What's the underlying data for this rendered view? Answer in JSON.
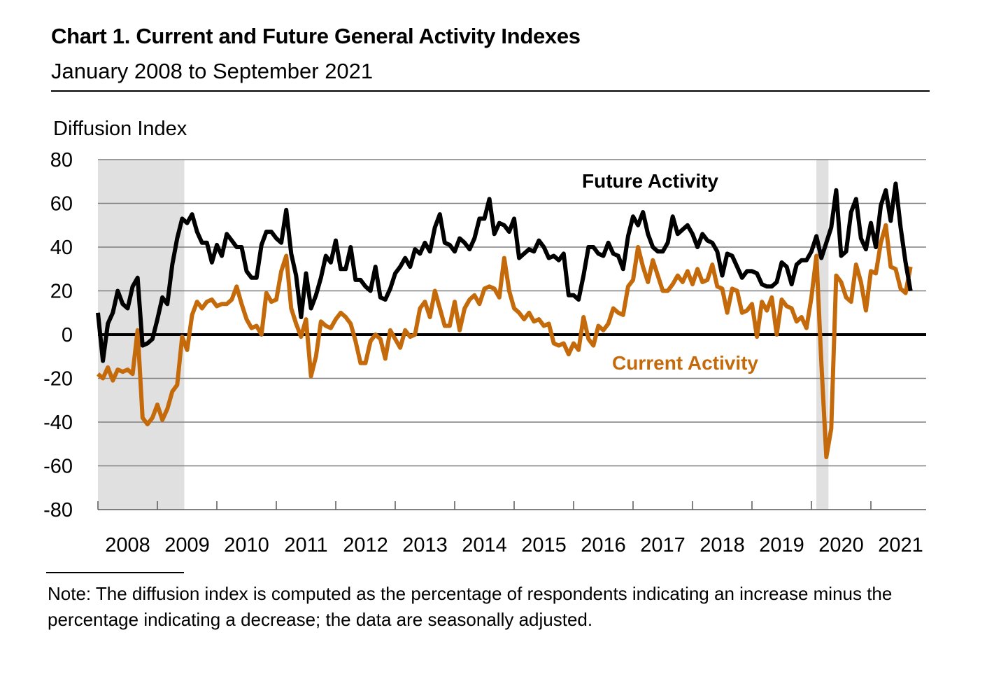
{
  "header": {
    "title": "Chart 1. Current and Future General Activity Indexes",
    "subtitle": "January 2008 to September 2021",
    "y_axis_title": "Diffusion Index"
  },
  "note": "Note: The diffusion index is computed as the percentage of respondents indicating an increase minus the percentage indicating a decrease; the data are seasonally adjusted.",
  "chart_data": {
    "type": "line",
    "title": "Chart 1. Current and Future General Activity Indexes",
    "subtitle": "January 2008 to September 2021",
    "xlabel": "",
    "ylabel": "Diffusion Index",
    "ylim": [
      -80,
      80
    ],
    "yticks": [
      80,
      60,
      40,
      20,
      0,
      -20,
      -40,
      -60,
      -80
    ],
    "ytick_labels": [
      "80",
      "60",
      "40",
      "20",
      "0",
      "-20",
      "-40",
      "-60",
      "-80"
    ],
    "x_start": "2008-01",
    "x_end": "2021-09",
    "frequency": "monthly",
    "xtick_labels": [
      "2008",
      "2009",
      "2010",
      "2011",
      "2012",
      "2013",
      "2014",
      "2015",
      "2016",
      "2017",
      "2018",
      "2019",
      "2020",
      "2021"
    ],
    "grid": "horizontal",
    "recession_shading": [
      {
        "start": "2008-01",
        "end": "2009-06"
      },
      {
        "start": "2020-02",
        "end": "2020-04"
      }
    ],
    "series": [
      {
        "name": "Future Activity",
        "color": "#000000",
        "label_position": "top-center",
        "values": [
          10,
          -12,
          5,
          10,
          20,
          14,
          12,
          22,
          26,
          -5,
          -4,
          -2,
          7,
          17,
          14,
          32,
          44,
          53,
          51,
          55,
          47,
          42,
          42,
          33,
          41,
          36,
          46,
          43,
          40,
          40,
          29,
          26,
          26,
          41,
          47,
          47,
          44,
          42,
          57,
          37,
          27,
          8,
          28,
          12,
          18,
          26,
          36,
          33,
          43,
          30,
          30,
          40,
          25,
          25,
          22,
          20,
          31,
          17,
          16,
          21,
          28,
          31,
          35,
          31,
          39,
          37,
          42,
          38,
          49,
          55,
          42,
          41,
          38,
          44,
          42,
          39,
          44,
          53,
          53,
          62,
          46,
          51,
          50,
          47,
          53,
          35,
          37,
          39,
          38,
          43,
          40,
          35,
          36,
          34,
          37,
          18,
          18,
          16,
          27,
          40,
          40,
          37,
          36,
          42,
          37,
          36,
          30,
          45,
          54,
          50,
          56,
          46,
          40,
          38,
          38,
          42,
          54,
          46,
          48,
          50,
          46,
          40,
          46,
          43,
          42,
          38,
          27,
          37,
          36,
          31,
          26,
          29,
          29,
          28,
          23,
          22,
          22,
          24,
          33,
          31,
          23,
          32,
          34,
          34,
          38,
          45,
          35,
          42,
          49,
          66,
          36,
          38,
          56,
          62,
          44,
          39,
          51,
          40,
          59,
          66,
          52,
          69,
          49,
          33,
          20
        ]
      },
      {
        "name": "Current Activity",
        "color": "#C46A0A",
        "label_position": "center-below-zero",
        "values": [
          -18,
          -20,
          -15,
          -21,
          -16,
          -17,
          -16,
          -18,
          2,
          -38,
          -41,
          -38,
          -32,
          -39,
          -34,
          -26,
          -23,
          -1,
          -7,
          9,
          15,
          12,
          15,
          16,
          13,
          14,
          14,
          16,
          22,
          14,
          7,
          3,
          4,
          0,
          19,
          15,
          16,
          29,
          36,
          12,
          5,
          -1,
          7,
          -19,
          -10,
          6,
          4,
          3,
          7,
          10,
          8,
          5,
          -3,
          -13,
          -13,
          -3,
          0,
          -2,
          -11,
          2,
          -2,
          -6,
          2,
          -1,
          0,
          12,
          15,
          8,
          20,
          12,
          4,
          4,
          15,
          2,
          12,
          16,
          18,
          14,
          21,
          22,
          21,
          17,
          35,
          20,
          12,
          10,
          7,
          10,
          6,
          7,
          4,
          5,
          -4,
          -5,
          -4,
          -9,
          -4,
          -7,
          8,
          -2,
          -5,
          4,
          2,
          5,
          12,
          10,
          9,
          22,
          25,
          40,
          31,
          24,
          34,
          27,
          20,
          20,
          23,
          27,
          24,
          29,
          23,
          30,
          24,
          25,
          32,
          22,
          21,
          10,
          21,
          20,
          10,
          11,
          14,
          -1,
          15,
          11,
          17,
          0,
          16,
          13,
          12,
          6,
          8,
          3,
          17,
          36,
          -13,
          -56,
          -43,
          27,
          24,
          17,
          15,
          32,
          24,
          11,
          29,
          28,
          42,
          50,
          31,
          30,
          21,
          19,
          31
        ]
      }
    ]
  }
}
